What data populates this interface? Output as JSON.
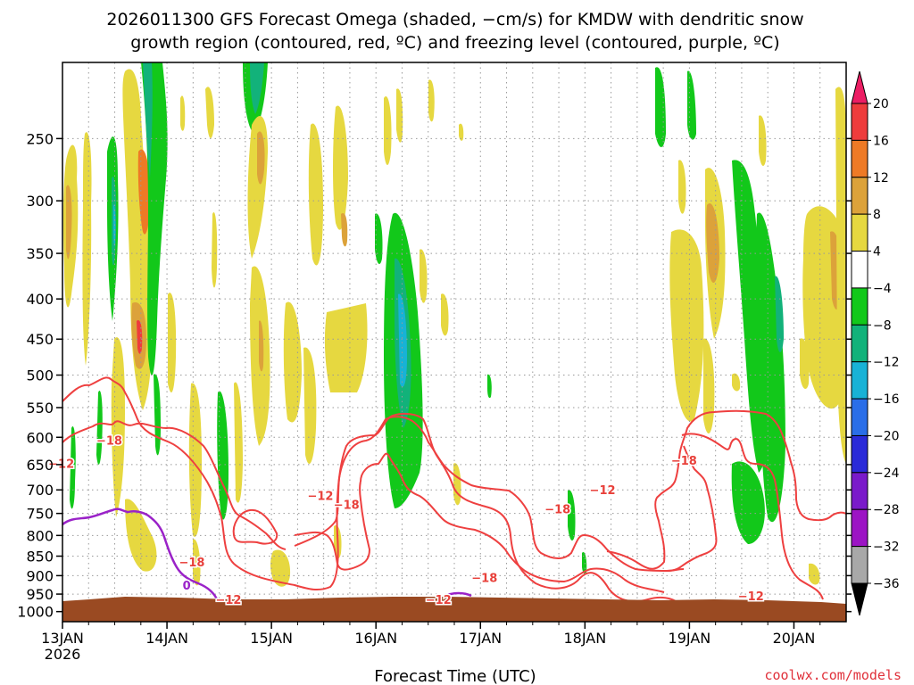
{
  "chart_data": {
    "type": "heatmap",
    "title_lines": [
      "2026011300 GFS Forecast Omega (shaded, −cm/s) for KMDW with dendritic snow",
      "growth region (contoured, red, ºC) and freezing level (contoured, purple, ºC)"
    ],
    "xlabel": "Forecast Time (UTC)",
    "credit": "coolwx.com/models",
    "x_ticks": [
      {
        "day": 0,
        "label": "13JAN",
        "sub": "2026"
      },
      {
        "day": 1,
        "label": "14JAN",
        "sub": ""
      },
      {
        "day": 2,
        "label": "15JAN",
        "sub": ""
      },
      {
        "day": 3,
        "label": "16JAN",
        "sub": ""
      },
      {
        "day": 4,
        "label": "17JAN",
        "sub": ""
      },
      {
        "day": 5,
        "label": "18JAN",
        "sub": ""
      },
      {
        "day": 6,
        "label": "19JAN",
        "sub": ""
      },
      {
        "day": 7,
        "label": "20JAN",
        "sub": ""
      }
    ],
    "xlim": [
      0,
      7.5
    ],
    "y_ticks": [
      250,
      300,
      350,
      400,
      450,
      500,
      550,
      600,
      650,
      700,
      750,
      800,
      850,
      900,
      950,
      1000
    ],
    "ylim": [
      200,
      1030
    ],
    "ylog": true,
    "grid": true,
    "colorbar": {
      "labels": [
        "20",
        "16",
        "12",
        "8",
        "4",
        "−4",
        "−8",
        "−12",
        "−16",
        "−20",
        "−24",
        "−28",
        "−32",
        "−36"
      ],
      "colors": [
        "#ec1e64",
        "#ee3c3c",
        "#ee7a26",
        "#dca23a",
        "#e6d840",
        "#ffffff",
        "#12c81a",
        "#12b27a",
        "#18b2d6",
        "#2a6ee8",
        "#2a2ad8",
        "#7a1aca",
        "#9c14c4",
        "#a8a8a8",
        "#000000"
      ]
    },
    "contour_labels": [
      {
        "text": "−18",
        "day": 0.38,
        "p": 605
      },
      {
        "text": "−12",
        "day": -0.08,
        "p": 648
      },
      {
        "text": "−18",
        "day": 1.17,
        "p": 865
      },
      {
        "text": "−12",
        "day": 1.52,
        "p": 965
      },
      {
        "text": "−12",
        "day": 2.4,
        "p": 712
      },
      {
        "text": "−18",
        "day": 2.65,
        "p": 730
      },
      {
        "text": "−12",
        "day": 3.53,
        "p": 965
      },
      {
        "text": "−18",
        "day": 3.97,
        "p": 905
      },
      {
        "text": "−18",
        "day": 4.67,
        "p": 740
      },
      {
        "text": "−12",
        "day": 5.1,
        "p": 700
      },
      {
        "text": "−18",
        "day": 5.88,
        "p": 642
      },
      {
        "text": "−12",
        "day": 6.52,
        "p": 955
      }
    ],
    "freezing_labels": [
      {
        "text": "0",
        "day": 1.12,
        "p": 925
      }
    ]
  }
}
